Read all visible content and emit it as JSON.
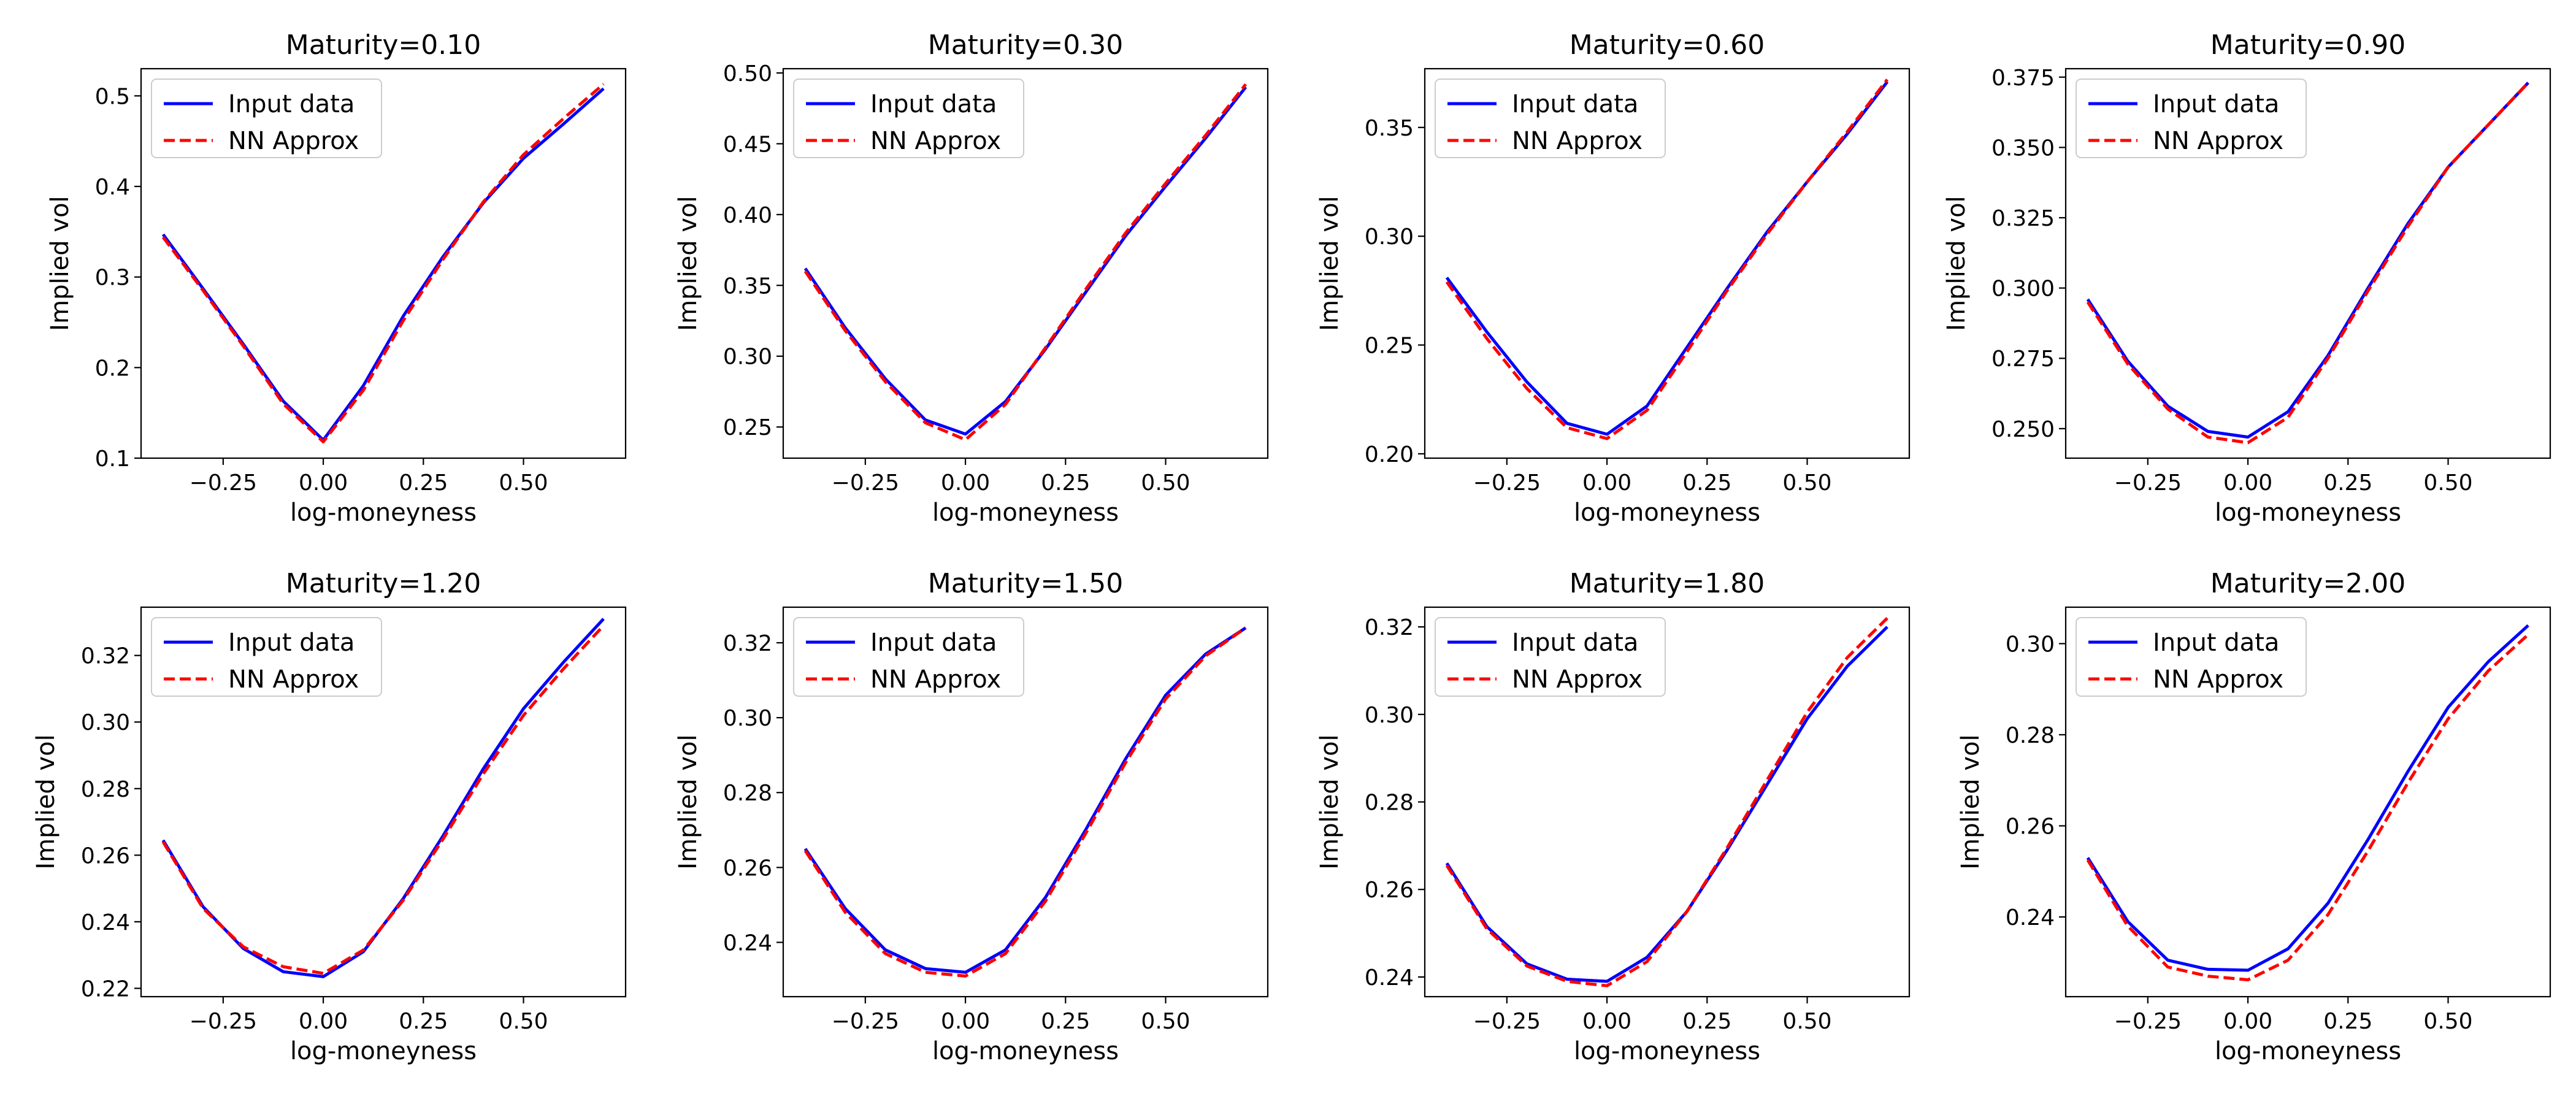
{
  "colors": {
    "input": "#0000ff",
    "approx": "#ff0000",
    "axis": "#000000",
    "legend_border": "#cccccc"
  },
  "chart_data": [
    {
      "type": "line",
      "title": "Maturity=0.10",
      "xlabel": "log-moneyness",
      "ylabel": "Implied vol",
      "xlim": [
        -0.455,
        0.755
      ],
      "ylim": [
        0.1,
        0.53
      ],
      "xticks": [
        -0.25,
        0.0,
        0.25,
        0.5
      ],
      "xtick_labels": [
        "−0.25",
        "0.00",
        "0.25",
        "0.50"
      ],
      "yticks": [
        0.1,
        0.2,
        0.3,
        0.4,
        0.5
      ],
      "ytick_labels": [
        "0.1",
        "0.2",
        "0.3",
        "0.4",
        "0.5"
      ],
      "legend": "upper-left",
      "series": [
        {
          "name": "Input data",
          "style": "solid",
          "x": [
            -0.4,
            -0.3,
            -0.2,
            -0.1,
            0.0,
            0.1,
            0.2,
            0.3,
            0.4,
            0.5,
            0.6,
            0.7
          ],
          "y": [
            0.347,
            0.287,
            0.226,
            0.163,
            0.12,
            0.18,
            0.257,
            0.323,
            0.382,
            0.431,
            0.469,
            0.508
          ]
        },
        {
          "name": "NN Approx",
          "style": "dashed",
          "x": [
            -0.4,
            -0.3,
            -0.2,
            -0.1,
            0.0,
            0.1,
            0.2,
            0.3,
            0.4,
            0.5,
            0.6,
            0.7
          ],
          "y": [
            0.344,
            0.285,
            0.224,
            0.16,
            0.118,
            0.175,
            0.252,
            0.32,
            0.383,
            0.435,
            0.475,
            0.513
          ]
        }
      ]
    },
    {
      "type": "line",
      "title": "Maturity=0.30",
      "xlabel": "log-moneyness",
      "ylabel": "Implied vol",
      "xlim": [
        -0.455,
        0.755
      ],
      "ylim": [
        0.228,
        0.503
      ],
      "xticks": [
        -0.25,
        0.0,
        0.25,
        0.5
      ],
      "xtick_labels": [
        "−0.25",
        "0.00",
        "0.25",
        "0.50"
      ],
      "yticks": [
        0.25,
        0.3,
        0.35,
        0.4,
        0.45,
        0.5
      ],
      "ytick_labels": [
        "0.25",
        "0.30",
        "0.35",
        "0.40",
        "0.45",
        "0.50"
      ],
      "legend": "upper-left",
      "series": [
        {
          "name": "Input data",
          "style": "solid",
          "x": [
            -0.4,
            -0.3,
            -0.2,
            -0.1,
            0.0,
            0.1,
            0.2,
            0.3,
            0.4,
            0.5,
            0.6,
            0.7
          ],
          "y": [
            0.362,
            0.32,
            0.284,
            0.255,
            0.245,
            0.268,
            0.305,
            0.345,
            0.385,
            0.42,
            0.454,
            0.49
          ]
        },
        {
          "name": "NN Approx",
          "style": "dashed",
          "x": [
            -0.4,
            -0.3,
            -0.2,
            -0.1,
            0.0,
            0.1,
            0.2,
            0.3,
            0.4,
            0.5,
            0.6,
            0.7
          ],
          "y": [
            0.36,
            0.318,
            0.282,
            0.253,
            0.241,
            0.266,
            0.306,
            0.347,
            0.387,
            0.422,
            0.456,
            0.492
          ]
        }
      ]
    },
    {
      "type": "line",
      "title": "Maturity=0.60",
      "xlabel": "log-moneyness",
      "ylabel": "Implied vol",
      "xlim": [
        -0.455,
        0.755
      ],
      "ylim": [
        0.198,
        0.377
      ],
      "xticks": [
        -0.25,
        0.0,
        0.25,
        0.5
      ],
      "xtick_labels": [
        "−0.25",
        "0.00",
        "0.25",
        "0.50"
      ],
      "yticks": [
        0.2,
        0.25,
        0.3,
        0.35
      ],
      "ytick_labels": [
        "0.20",
        "0.25",
        "0.30",
        "0.35"
      ],
      "legend": "upper-left",
      "series": [
        {
          "name": "Input data",
          "style": "solid",
          "x": [
            -0.4,
            -0.3,
            -0.2,
            -0.1,
            0.0,
            0.1,
            0.2,
            0.3,
            0.4,
            0.5,
            0.6,
            0.7
          ],
          "y": [
            0.281,
            0.256,
            0.233,
            0.214,
            0.209,
            0.222,
            0.249,
            0.276,
            0.302,
            0.325,
            0.347,
            0.371
          ]
        },
        {
          "name": "NN Approx",
          "style": "dashed",
          "x": [
            -0.4,
            -0.3,
            -0.2,
            -0.1,
            0.0,
            0.1,
            0.2,
            0.3,
            0.4,
            0.5,
            0.6,
            0.7
          ],
          "y": [
            0.279,
            0.253,
            0.23,
            0.212,
            0.207,
            0.22,
            0.247,
            0.275,
            0.301,
            0.325,
            0.348,
            0.372
          ]
        }
      ]
    },
    {
      "type": "line",
      "title": "Maturity=0.90",
      "xlabel": "log-moneyness",
      "ylabel": "Implied vol",
      "xlim": [
        -0.455,
        0.755
      ],
      "ylim": [
        0.2395,
        0.378
      ],
      "xticks": [
        -0.25,
        0.0,
        0.25,
        0.5
      ],
      "xtick_labels": [
        "−0.25",
        "0.00",
        "0.25",
        "0.50"
      ],
      "yticks": [
        0.25,
        0.275,
        0.3,
        0.325,
        0.35,
        0.375
      ],
      "ytick_labels": [
        "0.250",
        "0.275",
        "0.300",
        "0.325",
        "0.350",
        "0.375"
      ],
      "legend": "upper-left",
      "series": [
        {
          "name": "Input data",
          "style": "solid",
          "x": [
            -0.4,
            -0.3,
            -0.2,
            -0.1,
            0.0,
            0.1,
            0.2,
            0.3,
            0.4,
            0.5,
            0.6,
            0.7
          ],
          "y": [
            0.296,
            0.274,
            0.258,
            0.249,
            0.247,
            0.256,
            0.276,
            0.3,
            0.323,
            0.343,
            0.358,
            0.373
          ]
        },
        {
          "name": "NN Approx",
          "style": "dashed",
          "x": [
            -0.4,
            -0.3,
            -0.2,
            -0.1,
            0.0,
            0.1,
            0.2,
            0.3,
            0.4,
            0.5,
            0.6,
            0.7
          ],
          "y": [
            0.295,
            0.273,
            0.257,
            0.247,
            0.245,
            0.254,
            0.275,
            0.299,
            0.322,
            0.343,
            0.358,
            0.373
          ]
        }
      ]
    },
    {
      "type": "line",
      "title": "Maturity=1.20",
      "xlabel": "log-moneyness",
      "ylabel": "Implied vol",
      "xlim": [
        -0.455,
        0.755
      ],
      "ylim": [
        0.2175,
        0.3345
      ],
      "xticks": [
        -0.25,
        0.0,
        0.25,
        0.5
      ],
      "xtick_labels": [
        "−0.25",
        "0.00",
        "0.25",
        "0.50"
      ],
      "yticks": [
        0.22,
        0.24,
        0.26,
        0.28,
        0.3,
        0.32
      ],
      "ytick_labels": [
        "0.22",
        "0.24",
        "0.26",
        "0.28",
        "0.30",
        "0.32"
      ],
      "legend": "upper-left",
      "series": [
        {
          "name": "Input data",
          "style": "solid",
          "x": [
            -0.4,
            -0.3,
            -0.2,
            -0.1,
            0.0,
            0.1,
            0.2,
            0.3,
            0.4,
            0.5,
            0.6,
            0.7
          ],
          "y": [
            0.2645,
            0.2445,
            0.232,
            0.225,
            0.2235,
            0.231,
            0.247,
            0.266,
            0.286,
            0.304,
            0.318,
            0.331
          ]
        },
        {
          "name": "NN Approx",
          "style": "dashed",
          "x": [
            -0.4,
            -0.3,
            -0.2,
            -0.1,
            0.0,
            0.1,
            0.2,
            0.3,
            0.4,
            0.5,
            0.6,
            0.7
          ],
          "y": [
            0.264,
            0.244,
            0.2325,
            0.2265,
            0.2245,
            0.2315,
            0.2465,
            0.265,
            0.2845,
            0.302,
            0.316,
            0.329
          ]
        }
      ]
    },
    {
      "type": "line",
      "title": "Maturity=1.50",
      "xlabel": "log-moneyness",
      "ylabel": "Implied vol",
      "xlim": [
        -0.455,
        0.755
      ],
      "ylim": [
        0.2255,
        0.3295
      ],
      "xticks": [
        -0.25,
        0.0,
        0.25,
        0.5
      ],
      "xtick_labels": [
        "−0.25",
        "0.00",
        "0.25",
        "0.50"
      ],
      "yticks": [
        0.24,
        0.26,
        0.28,
        0.3,
        0.32
      ],
      "ytick_labels": [
        "0.24",
        "0.26",
        "0.28",
        "0.30",
        "0.32"
      ],
      "legend": "upper-left",
      "series": [
        {
          "name": "Input data",
          "style": "solid",
          "x": [
            -0.4,
            -0.3,
            -0.2,
            -0.1,
            0.0,
            0.1,
            0.2,
            0.3,
            0.4,
            0.5,
            0.6,
            0.7
          ],
          "y": [
            0.265,
            0.249,
            0.238,
            0.233,
            0.232,
            0.238,
            0.252,
            0.27,
            0.289,
            0.306,
            0.317,
            0.324
          ]
        },
        {
          "name": "NN Approx",
          "style": "dashed",
          "x": [
            -0.4,
            -0.3,
            -0.2,
            -0.1,
            0.0,
            0.1,
            0.2,
            0.3,
            0.4,
            0.5,
            0.6,
            0.7
          ],
          "y": [
            0.2645,
            0.248,
            0.237,
            0.232,
            0.231,
            0.237,
            0.251,
            0.269,
            0.288,
            0.305,
            0.3165,
            0.324
          ]
        }
      ]
    },
    {
      "type": "line",
      "title": "Maturity=1.80",
      "xlabel": "log-moneyness",
      "ylabel": "Implied vol",
      "xlim": [
        -0.455,
        0.755
      ],
      "ylim": [
        0.2355,
        0.3245
      ],
      "xticks": [
        -0.25,
        0.0,
        0.25,
        0.5
      ],
      "xtick_labels": [
        "−0.25",
        "0.00",
        "0.25",
        "0.50"
      ],
      "yticks": [
        0.24,
        0.26,
        0.28,
        0.3,
        0.32
      ],
      "ytick_labels": [
        "0.24",
        "0.26",
        "0.28",
        "0.30",
        "0.32"
      ],
      "legend": "upper-left",
      "series": [
        {
          "name": "Input data",
          "style": "solid",
          "x": [
            -0.4,
            -0.3,
            -0.2,
            -0.1,
            0.0,
            0.1,
            0.2,
            0.3,
            0.4,
            0.5,
            0.6,
            0.7
          ],
          "y": [
            0.266,
            0.2515,
            0.243,
            0.2395,
            0.239,
            0.2445,
            0.255,
            0.269,
            0.284,
            0.299,
            0.311,
            0.32
          ]
        },
        {
          "name": "NN Approx",
          "style": "dashed",
          "x": [
            -0.4,
            -0.3,
            -0.2,
            -0.1,
            0.0,
            0.1,
            0.2,
            0.3,
            0.4,
            0.5,
            0.6,
            0.7
          ],
          "y": [
            0.2655,
            0.251,
            0.2425,
            0.239,
            0.238,
            0.2435,
            0.255,
            0.2695,
            0.285,
            0.3005,
            0.313,
            0.322
          ]
        }
      ]
    },
    {
      "type": "line",
      "title": "Maturity=2.00",
      "xlabel": "log-moneyness",
      "ylabel": "Implied vol",
      "xlim": [
        -0.455,
        0.755
      ],
      "ylim": [
        0.2225,
        0.308
      ],
      "xticks": [
        -0.25,
        0.0,
        0.25,
        0.5
      ],
      "xtick_labels": [
        "−0.25",
        "0.00",
        "0.25",
        "0.50"
      ],
      "yticks": [
        0.24,
        0.26,
        0.28,
        0.3
      ],
      "ytick_labels": [
        "0.24",
        "0.26",
        "0.28",
        "0.30"
      ],
      "legend": "upper-left",
      "series": [
        {
          "name": "Input data",
          "style": "solid",
          "x": [
            -0.4,
            -0.3,
            -0.2,
            -0.1,
            0.0,
            0.1,
            0.2,
            0.3,
            0.4,
            0.5,
            0.6,
            0.7
          ],
          "y": [
            0.253,
            0.239,
            0.2305,
            0.2285,
            0.2283,
            0.233,
            0.243,
            0.257,
            0.272,
            0.286,
            0.296,
            0.304
          ]
        },
        {
          "name": "NN Approx",
          "style": "dashed",
          "x": [
            -0.4,
            -0.3,
            -0.2,
            -0.1,
            0.0,
            0.1,
            0.2,
            0.3,
            0.4,
            0.5,
            0.6,
            0.7
          ],
          "y": [
            0.2525,
            0.238,
            0.229,
            0.227,
            0.2262,
            0.2305,
            0.2405,
            0.2545,
            0.2695,
            0.2835,
            0.294,
            0.302
          ]
        }
      ]
    }
  ]
}
